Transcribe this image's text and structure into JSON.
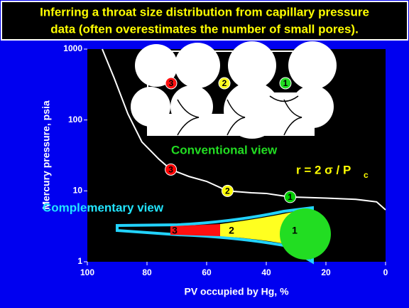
{
  "chart_data": {
    "type": "line",
    "title_lines": [
      "Inferring a throat size distribution from capillary pressure",
      "data (often overestimates the number of small pores)."
    ],
    "x_label": "PV occupied by Hg, %",
    "y_label": "Mercury pressure, psia",
    "xlim": [
      100,
      0
    ],
    "xticks": [
      100,
      80,
      60,
      40,
      20,
      0
    ],
    "ylim": [
      1,
      1000
    ],
    "yticks": [
      1,
      10,
      100,
      1000
    ],
    "ylog": true,
    "series": [
      {
        "color": "#ffffff",
        "x": [
          95,
          91,
          86.4,
          81.7,
          76,
          72,
          66,
          60,
          53,
          45,
          40,
          32,
          20,
          10,
          3,
          0
        ],
        "values": [
          1000,
          390,
          122,
          49,
          28,
          20,
          16,
          13.6,
          10,
          9.4,
          9.2,
          8.2,
          7.9,
          7.6,
          7,
          5.4
        ]
      }
    ],
    "markers": [
      {
        "label": "3",
        "x": 72,
        "y": 20,
        "color": "#ff0000"
      },
      {
        "label": "2",
        "x": 53,
        "y": 10,
        "color": "#ffff00"
      },
      {
        "label": "1",
        "x": 32,
        "y": 8.2,
        "color": "#00cc00"
      }
    ],
    "inset_labels": [
      "3",
      "2",
      "1"
    ],
    "distribution_labels": [
      "3",
      "2",
      "1"
    ],
    "conventional": "Conventional view",
    "complementary": "Complementary view",
    "formula": "r = 2 σ / P",
    "formula_subscript": "c"
  }
}
